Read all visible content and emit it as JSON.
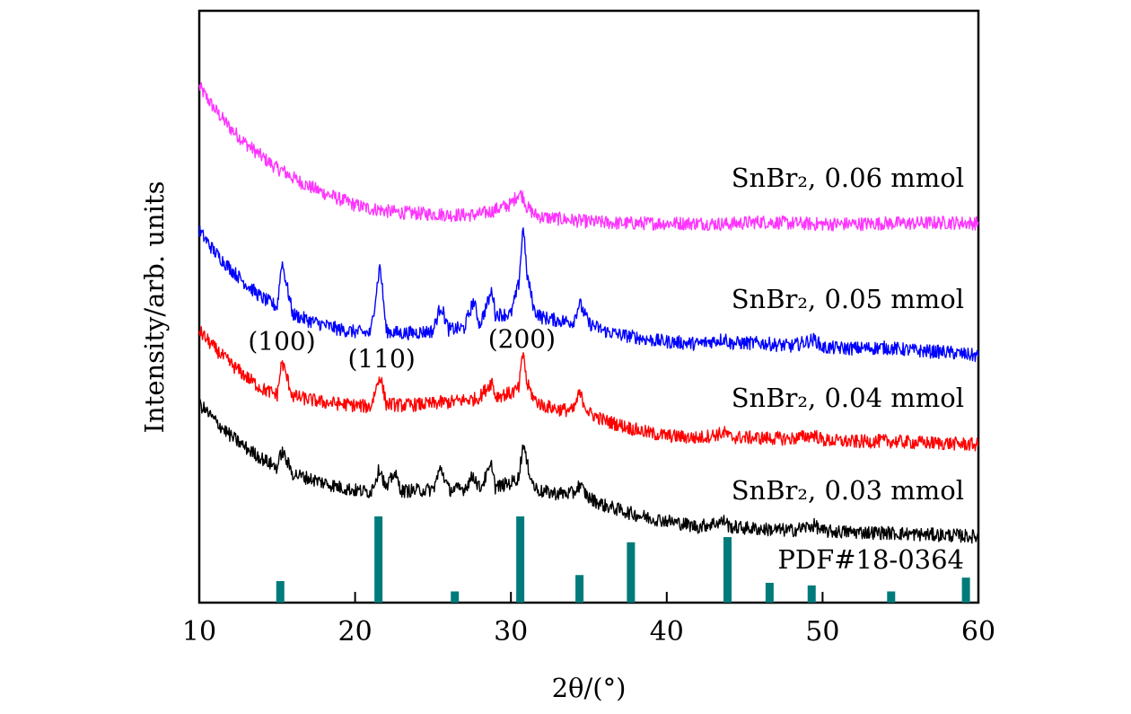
{
  "chart_data": {
    "type": "line",
    "title": "",
    "xlabel": "2θ/(°)",
    "ylabel": "Intensity/arb. units",
    "xlim": [
      10,
      60
    ],
    "xticks": [
      {
        "value": 10,
        "label": "10"
      },
      {
        "value": 20,
        "label": "20"
      },
      {
        "value": 30,
        "label": "30"
      },
      {
        "value": 40,
        "label": "40"
      },
      {
        "value": 50,
        "label": "50"
      },
      {
        "value": 60,
        "label": "60"
      }
    ],
    "y_ticks_shown": false,
    "grid": false,
    "x": [
      10,
      11,
      12,
      13,
      14,
      15,
      15.3,
      16,
      17,
      18,
      19,
      20,
      21,
      21.6,
      22,
      22.5,
      23,
      24,
      25,
      25.5,
      26,
      27,
      27.6,
      28,
      28.8,
      29,
      30,
      30.5,
      30.8,
      31,
      31.5,
      32,
      33,
      34,
      34.4,
      35,
      36,
      37,
      38,
      39,
      40,
      42,
      43.8,
      44,
      46,
      48,
      49.5,
      50,
      52,
      54,
      56,
      58,
      60
    ],
    "series": [
      {
        "name": "SnBr₂, 0.06 mmol",
        "color": "#ff33ff",
        "values": [
          680,
          650,
          625,
          605,
          588,
          572,
          570,
          560,
          549,
          540,
          532,
          524,
          519,
          518,
          516,
          515,
          514,
          513,
          512,
          512,
          511,
          511,
          511,
          512,
          516,
          518,
          525,
          540,
          535,
          522,
          512,
          508,
          506,
          504,
          503,
          502,
          501,
          500,
          500,
          500,
          500,
          500,
          499,
          499,
          502,
          500,
          499,
          499,
          499,
          500,
          500,
          501,
          500
        ]
      },
      {
        "name": "SnBr₂, 0.05 mmol",
        "color": "#0000ff",
        "values": [
          490,
          462,
          440,
          420,
          402,
          390,
          450,
          380,
          372,
          366,
          360,
          357,
          355,
          446,
          358,
          356,
          355,
          356,
          358,
          392,
          360,
          362,
          398,
          366,
          412,
          380,
          380,
          420,
          500,
          436,
          385,
          376,
          372,
          370,
          395,
          368,
          358,
          353,
          350,
          346,
          344,
          341,
          348,
          342,
          342,
          338,
          347,
          336,
          335,
          336,
          332,
          330,
          325
        ]
      },
      {
        "name": "SnBr₂, 0.04 mmol",
        "color": "#ff0000",
        "values": [
          358,
          335,
          315,
          298,
          282,
          274,
          318,
          272,
          268,
          264,
          262,
          260,
          258,
          300,
          262,
          261,
          260,
          261,
          262,
          264,
          264,
          267,
          268,
          271,
          292,
          272,
          276,
          282,
          333,
          290,
          268,
          260,
          255,
          253,
          276,
          250,
          240,
          234,
          228,
          223,
          220,
          217,
          224,
          218,
          217,
          216,
          221,
          214,
          212,
          213,
          211,
          210,
          208
        ]
      },
      {
        "name": "SnBr₂, 0.03 mmol",
        "color": "#000000",
        "values": [
          262,
          240,
          220,
          204,
          190,
          178,
          200,
          170,
          164,
          158,
          152,
          148,
          146,
          178,
          148,
          172,
          147,
          148,
          149,
          178,
          149,
          150,
          168,
          150,
          182,
          152,
          158,
          165,
          212,
          185,
          152,
          146,
          144,
          144,
          155,
          138,
          128,
          122,
          116,
          111,
          108,
          100,
          108,
          100,
          97,
          95,
          102,
          94,
          93,
          92,
          90,
          89,
          87
        ]
      }
    ],
    "series_labels": [
      {
        "text": "SnBr₂, 0.06 mmol",
        "x": 60,
        "y": 560
      },
      {
        "text": "SnBr₂, 0.05 mmol",
        "x": 60,
        "y": 400
      },
      {
        "text": "SnBr₂, 0.04 mmol",
        "x": 60,
        "y": 270
      },
      {
        "text": "SnBr₂, 0.03 mmol",
        "x": 60,
        "y": 148
      }
    ],
    "peak_annotations": [
      {
        "text": "(100)",
        "x": 15.3,
        "y": 345
      },
      {
        "text": "(110)",
        "x": 21.7,
        "y": 322
      },
      {
        "text": "(200)",
        "x": 30.7,
        "y": 348
      }
    ],
    "reference": {
      "name": "PDF#18-0364",
      "label_x": 60,
      "label_y": 57,
      "color": "#007b7b",
      "sticks": [
        {
          "x": 15.2,
          "intensity": 25
        },
        {
          "x": 21.5,
          "intensity": 100
        },
        {
          "x": 26.4,
          "intensity": 13
        },
        {
          "x": 30.6,
          "intensity": 100
        },
        {
          "x": 34.4,
          "intensity": 32
        },
        {
          "x": 37.7,
          "intensity": 70
        },
        {
          "x": 43.9,
          "intensity": 76
        },
        {
          "x": 46.6,
          "intensity": 23
        },
        {
          "x": 49.3,
          "intensity": 20
        },
        {
          "x": 54.4,
          "intensity": 13
        },
        {
          "x": 59.2,
          "intensity": 29
        }
      ]
    }
  }
}
